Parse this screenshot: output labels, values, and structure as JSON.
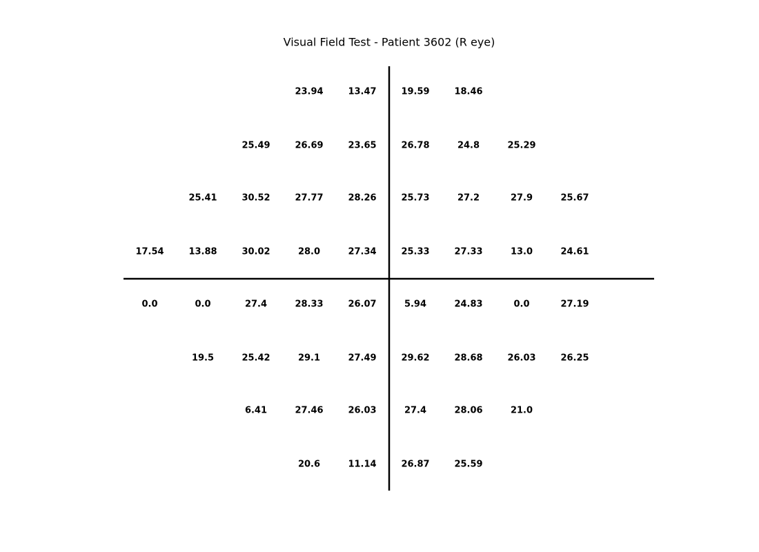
{
  "title": "Visual Field Test - Patient 3602 (R eye)",
  "grid": {
    "rows": [
      [
        null,
        null,
        null,
        "23.94",
        "13.47",
        "19.59",
        "18.46",
        null,
        null
      ],
      [
        null,
        null,
        "25.49",
        "26.69",
        "23.65",
        "26.78",
        "24.8",
        "25.29",
        null
      ],
      [
        null,
        "25.41",
        "30.52",
        "27.77",
        "28.26",
        "25.73",
        "27.2",
        "27.9",
        "25.67"
      ],
      [
        "17.54",
        "13.88",
        "30.02",
        "28.0",
        "27.34",
        "25.33",
        "27.33",
        "13.0",
        "24.61"
      ],
      [
        "0.0",
        "0.0",
        "27.4",
        "28.33",
        "26.07",
        "5.94",
        "24.83",
        "0.0",
        "27.19"
      ],
      [
        null,
        "19.5",
        "25.42",
        "29.1",
        "27.49",
        "29.62",
        "28.68",
        "26.03",
        "26.25"
      ],
      [
        null,
        null,
        "6.41",
        "27.46",
        "26.03",
        "27.4",
        "28.06",
        "21.0",
        null
      ],
      [
        null,
        null,
        null,
        "20.6",
        "11.14",
        "26.87",
        "25.59",
        null,
        null
      ]
    ]
  }
}
